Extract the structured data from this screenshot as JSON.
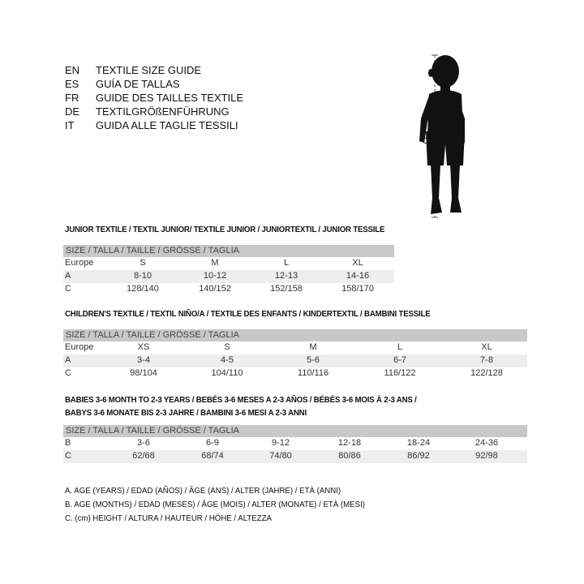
{
  "title_block": [
    {
      "code": "EN",
      "text": "TEXTILE SIZE GUIDE"
    },
    {
      "code": "ES",
      "text": "GUÍA DE TALLAS"
    },
    {
      "code": "FR",
      "text": "GUIDE DES TAILLES TEXTILE"
    },
    {
      "code": "DE",
      "text": "TEXTILGRÖßENFÜHRUNG"
    },
    {
      "code": "IT",
      "text": "GUIDA ALLE TAGLIE TESSILI"
    }
  ],
  "figure": {
    "icon": "child-silhouette-icon",
    "measure_label": "C"
  },
  "junior": {
    "heading": "JUNIOR TEXTILE / TEXTIL JUNIOR/ TEXTILE JUNIOR / JUNIORTEXTIL / JUNIOR TESSILE",
    "size_header": "SIZE / TALLA / TAILLE / GRÖSSE / TAGLIA",
    "rows": [
      {
        "label": "Europe",
        "values": [
          "S",
          "M",
          "L",
          "XL"
        ]
      },
      {
        "label": "A",
        "values": [
          "8-10",
          "10-12",
          "12-13",
          "14-16"
        ]
      },
      {
        "label": "C",
        "values": [
          "128/140",
          "140/152",
          "152/158",
          "158/170"
        ]
      }
    ]
  },
  "children": {
    "heading": "CHILDREN'S TEXTILE / TEXTIL NIÑO/A / TEXTILE DES ENFANTS / KINDERTEXTIL / BAMBINI TESSILE",
    "size_header": "SIZE / TALLA / TAILLE / GRÖSSE / TAGLIA",
    "rows": [
      {
        "label": "Europe",
        "values": [
          "XS",
          "S",
          "M",
          "L",
          "XL"
        ]
      },
      {
        "label": "A",
        "values": [
          "3-4",
          "4-5",
          "5-6",
          "6-7",
          "7-8"
        ]
      },
      {
        "label": "C",
        "values": [
          "98/104",
          "104/110",
          "110/116",
          "116/122",
          "122/128"
        ]
      }
    ]
  },
  "babies": {
    "heading": "BABIES 3-6 MONTH TO 2-3 YEARS / BEBÉS 3-6 MESES A 2-3 AÑOS / BÉBÉS 3-6 MOIS À 2-3 ANS /",
    "heading2": "BABYS 3-6 MONATE BIS 2-3 JAHRE / BAMBINI 3-6 MESI A 2-3 ANNI",
    "size_header": "SIZE / TALLA / TAILLE / GRÖSSE / TAGLIA",
    "rows": [
      {
        "label": "B",
        "values": [
          "3-6",
          "6-9",
          "9-12",
          "12-18",
          "18-24",
          "24-36"
        ]
      },
      {
        "label": "C",
        "values": [
          "62/68",
          "68/74",
          "74/80",
          "80/86",
          "86/92",
          "92/98"
        ]
      }
    ]
  },
  "legend": [
    "A. AGE (YEARS) / EDAD (AÑOS) / ÂGE (ANS) / ALTER (JAHRE) / ETÀ (ANNI)",
    "B. AGE (MONTHS) / EDAD (MESES) / ÂGE (MOIS) / ALTER (MONATE) / ETÀ (MESI)",
    "C. (cm) HEIGHT / ALTURA / HAUTEUR / HÖHE / ALTEZZA"
  ]
}
